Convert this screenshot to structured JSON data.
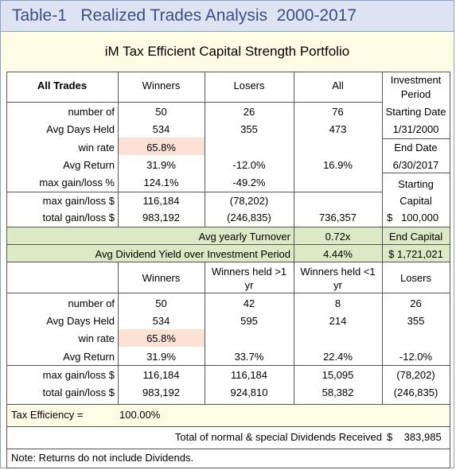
{
  "title": "Table-1   Realized Trades Analysis  2000-2017",
  "subtitle": "iM Tax Efficient Capital Strength Portfolio",
  "top_table": {
    "headers": {
      "label": "All Trades",
      "winners": "Winners",
      "losers": "Losers",
      "all": "All",
      "period": "Investment Period"
    },
    "rows": [
      {
        "label": "number of",
        "winners": "50",
        "losers": "26",
        "all": "76"
      },
      {
        "label": "Avg Days Held",
        "winners": "534",
        "losers": "355",
        "all": "473"
      },
      {
        "label": "win rate",
        "winners": "65.8%",
        "losers": "",
        "all": ""
      },
      {
        "label": "Avg Return",
        "winners": "31.9%",
        "losers": "-12.0%",
        "all": "16.9%"
      },
      {
        "label": "max gain/loss %",
        "winners": "124.1%",
        "losers": "-49.2%",
        "all": ""
      },
      {
        "label": "max gain/loss $",
        "winners": "116,184",
        "losers": "(78,202)",
        "all": ""
      },
      {
        "label": "total gain/loss $",
        "winners": "983,192",
        "losers": "(246,835)",
        "all": "736,357"
      }
    ],
    "period": {
      "starting_date_label": "Starting Date",
      "starting_date": "1/31/2000",
      "end_date_label": "End Date",
      "end_date": "6/30/2017",
      "starting_capital_label": "Starting Capital",
      "starting_capital": "$   100,000"
    }
  },
  "green_band": {
    "turnover_label": "Avg yearly Turnover",
    "turnover_value": "0.72x",
    "dividend_label": "Avg Dividend Yield over Investment Period",
    "dividend_value": "4.44%",
    "end_capital_label": "End Capital",
    "end_capital_value": "$ 1,721,021"
  },
  "bottom_table": {
    "headers": {
      "winners": "Winners",
      "held_gt1": "Winners held >1 yr",
      "held_lt1": "Winners held <1 yr",
      "losers": "Losers"
    },
    "rows": [
      {
        "label": "number of",
        "winners": "50",
        "held_gt1": "42",
        "held_lt1": "8",
        "losers": "26"
      },
      {
        "label": "Avg Days Held",
        "winners": "534",
        "held_gt1": "595",
        "held_lt1": "214",
        "losers": "355"
      },
      {
        "label": "win rate",
        "winners": "65.8%",
        "held_gt1": "",
        "held_lt1": "",
        "losers": ""
      },
      {
        "label": "Avg Return",
        "winners": "31.9%",
        "held_gt1": "33.7%",
        "held_lt1": "22.4%",
        "losers": "-12.0%"
      },
      {
        "label": "max gain/loss $",
        "winners": "116,184",
        "held_gt1": "116,184",
        "held_lt1": "15,095",
        "losers": "(78,202)"
      },
      {
        "label": "total gain/loss $",
        "winners": "983,192",
        "held_gt1": "924,810",
        "held_lt1": "58,382",
        "losers": "(246,835)"
      }
    ]
  },
  "tax_efficiency": {
    "label": "Tax Efficiency =",
    "value": "100.00%"
  },
  "dividends": {
    "label": "Total of normal & special Dividends Received",
    "value": "$    383,985"
  },
  "note": "Note: Returns do not include Dividends.",
  "colors": {
    "title_bg": "#dde3f1",
    "title_text": "#3b4f86",
    "subtitle_bg": "#fdfde6",
    "highlight": "#fbe2d4",
    "green": "#dbe9c4",
    "tax_bg": "#fdfde6"
  }
}
